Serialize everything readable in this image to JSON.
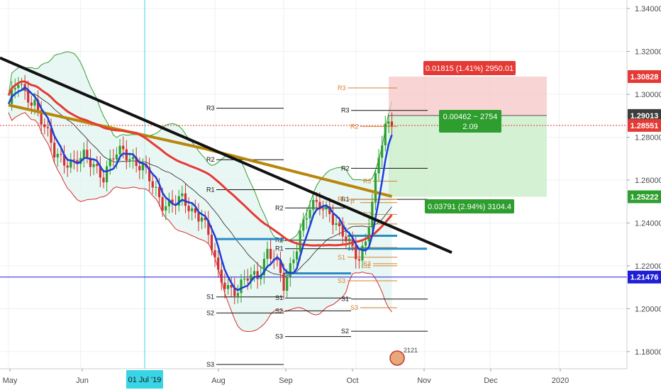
{
  "chart_data": {
    "type": "candlestick",
    "y_axis": {
      "range": [
        1.172,
        1.344
      ],
      "ticks": [
        "1.34000",
        "1.32000",
        "1.30000",
        "1.28000",
        "1.26000",
        "1.24000",
        "1.22000",
        "1.20000",
        "1.18000"
      ]
    },
    "x_axis": {
      "labels": [
        "May",
        "Jun",
        "Aug",
        "Sep",
        "Oct",
        "Nov",
        "Dec",
        "2020"
      ],
      "highlight_label": "01 Jul '19"
    },
    "price_tags": [
      {
        "value": "1.30828",
        "bg": "#e53935",
        "fg": "#ffffff"
      },
      {
        "value": "1.29013",
        "bg": "#3d3d3d",
        "fg": "#ffffff"
      },
      {
        "value": "1.28551",
        "bg": "#e53935",
        "fg": "#ffffff"
      },
      {
        "value": "1.25222",
        "bg": "#2e9e2e",
        "fg": "#ffffff"
      },
      {
        "value": "1.21476",
        "bg": "#1e1ed6",
        "fg": "#ffffff"
      }
    ],
    "horizontal_line": {
      "value": 1.21476,
      "color": "#1e1ed6"
    },
    "current_price_line": {
      "value": 1.28551,
      "color": "#e53935"
    },
    "position": {
      "entry": 1.29013,
      "stop": 1.30828,
      "target": 1.25222,
      "stop_label": "0.01815 (1.41%) 2950.01",
      "target_label": "0.03791 (2.94%) 3104.4",
      "entry_label_1": "0.00462 ~ 2754",
      "entry_label_2": "2.09"
    },
    "trendline": {
      "points": [
        [
          0.0,
          1.317
        ],
        [
          95.0,
          1.2262
        ]
      ],
      "color": "#111111"
    },
    "pivot_labels": {
      "R3": "R3",
      "R2": "R2",
      "R1": "R1",
      "P": "P",
      "S1": "S1",
      "S2": "S2",
      "S3": "S3"
    },
    "badge_text": "2121",
    "series_colors": {
      "ma_fast": "#1a3fd6",
      "ma_slow": "#e53935",
      "ma_long": "#b8860b",
      "ma_thin": "#222222",
      "bb_upper": "#2e9e2e",
      "bb_lower": "#d32f2f",
      "bb_fill": "#dff3ef",
      "candle_up": "#2e9e2e",
      "candle_down": "#d32f2f"
    }
  }
}
